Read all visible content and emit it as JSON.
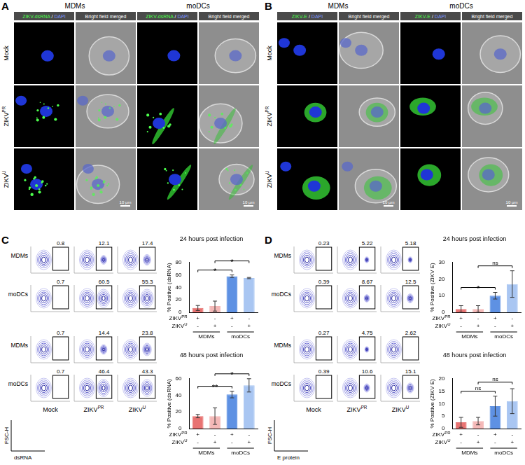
{
  "image_panels": [
    {
      "letter": "A",
      "groups": [
        "MDMs",
        "moDCs"
      ],
      "channels": [
        "ZIKV-dsRNA / DAPI",
        "Bright field merged"
      ],
      "rows": [
        {
          "text": "Mock"
        },
        {
          "text": "ZIKV",
          "sup": "PR"
        },
        {
          "text": "ZIKV",
          "sup": "U"
        }
      ],
      "scale_bar": "10 μm"
    },
    {
      "letter": "B",
      "groups": [
        "MDMs",
        "moDCs"
      ],
      "channels": [
        "ZIKV-E / DAPI",
        "Bright field merged"
      ],
      "rows": [
        {
          "text": "Mock"
        },
        {
          "text": "ZIKV",
          "sup": "PR"
        },
        {
          "text": "ZIKV",
          "sup": "U"
        }
      ],
      "scale_bar": "10 μm"
    }
  ],
  "flow_panels": [
    {
      "letter": "C",
      "x_label": "dsRNA",
      "y_label": "FSC-H",
      "columns": [
        {
          "text": "Mock"
        },
        {
          "text": "ZIKV",
          "sup": "PR"
        },
        {
          "text": "ZIKV",
          "sup": "U"
        }
      ],
      "timepoints": [
        {
          "rows": [
            {
              "label": "MDMs",
              "gate_percent": [
                0.8,
                12.1,
                17.4
              ]
            },
            {
              "label": "moDCs",
              "gate_percent": [
                0.7,
                60.5,
                55.3
              ]
            }
          ]
        },
        {
          "rows": [
            {
              "label": "MDMs",
              "gate_percent": [
                0.7,
                14.4,
                23.8
              ]
            },
            {
              "label": "moDCs",
              "gate_percent": [
                0.7,
                46.4,
                43.3
              ]
            }
          ]
        }
      ]
    },
    {
      "letter": "D",
      "x_label": "E protein",
      "y_label": "FSC-H",
      "columns": [
        {
          "text": "Mock"
        },
        {
          "text": "ZIKV",
          "sup": "PR"
        },
        {
          "text": "ZIKV",
          "sup": "U"
        }
      ],
      "timepoints": [
        {
          "rows": [
            {
              "label": "MDMs",
              "gate_percent": [
                0.23,
                5.22,
                5.18
              ]
            },
            {
              "label": "moDCs",
              "gate_percent": [
                0.39,
                8.67,
                12.5
              ]
            }
          ]
        },
        {
          "rows": [
            {
              "label": "MDMs",
              "gate_percent": [
                0.27,
                4.75,
                2.62
              ]
            },
            {
              "label": "moDCs",
              "gate_percent": [
                0.39,
                10.6,
                15.1
              ]
            }
          ]
        }
      ]
    }
  ],
  "chart_data": [
    {
      "type": "bar",
      "title": "24 hours post infection",
      "y_label": "% Positive (dsRNA)",
      "categories": [
        null,
        null,
        null,
        null
      ],
      "values": [
        7,
        10,
        58,
        55
      ],
      "errors": [
        4,
        8,
        2,
        1
      ],
      "colors": [
        "#e87372",
        "#f4b8b7",
        "#5e91e3",
        "#a9c6f2"
      ],
      "ylim": [
        0,
        80
      ],
      "yticks": [
        0,
        20,
        40,
        60,
        80
      ],
      "grid": false,
      "tick_labels": "y",
      "comparisons": [
        {
          "bars": [
            0,
            2
          ],
          "label": "*"
        },
        {
          "bars": [
            1,
            3
          ],
          "label": "*"
        }
      ],
      "x_table": {
        "rows": [
          {
            "label": {
              "text": "ZIKV",
              "sup": "PR"
            },
            "values": [
              "+",
              "-",
              "+",
              "-"
            ]
          },
          {
            "label": {
              "text": "ZIKV",
              "sup": "U"
            },
            "values": [
              "-",
              "+",
              "-",
              "+"
            ]
          }
        ],
        "groups": [
          {
            "label": "MDMs",
            "bars": [
              0,
              1
            ]
          },
          {
            "label": "moDCs",
            "bars": [
              2,
              3
            ]
          }
        ]
      }
    },
    {
      "type": "bar",
      "title": "48 hours post infection",
      "y_label": "% Positive (dsRNA)",
      "categories": [
        null,
        null,
        null,
        null
      ],
      "values": [
        15,
        15,
        41,
        52
      ],
      "errors": [
        2,
        10,
        4,
        8
      ],
      "colors": [
        "#e87372",
        "#f4b8b7",
        "#5e91e3",
        "#a9c6f2"
      ],
      "ylim": [
        0,
        60
      ],
      "yticks": [
        0,
        20,
        40,
        60
      ],
      "grid": false,
      "tick_labels": "y",
      "comparisons": [
        {
          "bars": [
            0,
            2
          ],
          "label": "**"
        },
        {
          "bars": [
            1,
            3
          ],
          "label": "*"
        }
      ],
      "x_table": {
        "rows": [
          {
            "label": {
              "text": "ZIKV",
              "sup": "PR"
            },
            "values": [
              "+",
              "-",
              "+",
              "-"
            ]
          },
          {
            "label": {
              "text": "ZIKV",
              "sup": "U"
            },
            "values": [
              "-",
              "+",
              "-",
              "+"
            ]
          }
        ],
        "groups": [
          {
            "label": "MDMs",
            "bars": [
              0,
              1
            ]
          },
          {
            "label": "moDCs",
            "bars": [
              2,
              3
            ]
          }
        ]
      }
    },
    {
      "type": "bar",
      "title": "24 hours post infection",
      "y_label": "% Positive (ZIKV E)",
      "categories": [
        null,
        null,
        null,
        null
      ],
      "values": [
        2,
        2,
        10,
        17
      ],
      "errors": [
        2,
        2,
        2,
        8
      ],
      "colors": [
        "#e87372",
        "#f4b8b7",
        "#5e91e3",
        "#a9c6f2"
      ],
      "ylim": [
        0,
        30
      ],
      "yticks": [
        0,
        10,
        20,
        30
      ],
      "grid": false,
      "tick_labels": "y",
      "comparisons": [
        {
          "bars": [
            0,
            2
          ],
          "label": "*"
        },
        {
          "bars": [
            1,
            3
          ],
          "label": "ns"
        }
      ],
      "x_table": {
        "rows": [
          {
            "label": {
              "text": "ZIKV",
              "sup": "PR"
            },
            "values": [
              "+",
              "-",
              "+",
              "-"
            ]
          },
          {
            "label": {
              "text": "ZIKV",
              "sup": "U"
            },
            "values": [
              "-",
              "+",
              "-",
              "+"
            ]
          }
        ],
        "groups": [
          {
            "label": "MDMs",
            "bars": [
              0,
              1
            ]
          },
          {
            "label": "moDCs",
            "bars": [
              2,
              3
            ]
          }
        ]
      }
    },
    {
      "type": "bar",
      "title": "48 hours post infection",
      "y_label": "% Positive (ZIKV E)",
      "categories": [
        null,
        null,
        null,
        null
      ],
      "values": [
        2.5,
        3,
        9,
        11
      ],
      "errors": [
        2,
        1.5,
        4,
        5
      ],
      "colors": [
        "#e87372",
        "#f4b8b7",
        "#5e91e3",
        "#a9c6f2"
      ],
      "ylim": [
        0,
        20
      ],
      "yticks": [
        0,
        5,
        10,
        15,
        20
      ],
      "grid": false,
      "tick_labels": "y",
      "comparisons": [
        {
          "bars": [
            0,
            2
          ],
          "label": "ns"
        },
        {
          "bars": [
            1,
            3
          ],
          "label": "ns"
        }
      ],
      "x_table": {
        "rows": [
          {
            "label": {
              "text": "ZIKV",
              "sup": "PR"
            },
            "values": [
              "+",
              "-",
              "+",
              "-"
            ]
          },
          {
            "label": {
              "text": "ZIKV",
              "sup": "U"
            },
            "values": [
              "-",
              "+",
              "-",
              "+"
            ]
          }
        ],
        "groups": [
          {
            "label": "MDMs",
            "bars": [
              0,
              1
            ]
          },
          {
            "label": "moDCs",
            "bars": [
              2,
              3
            ]
          }
        ]
      }
    }
  ]
}
